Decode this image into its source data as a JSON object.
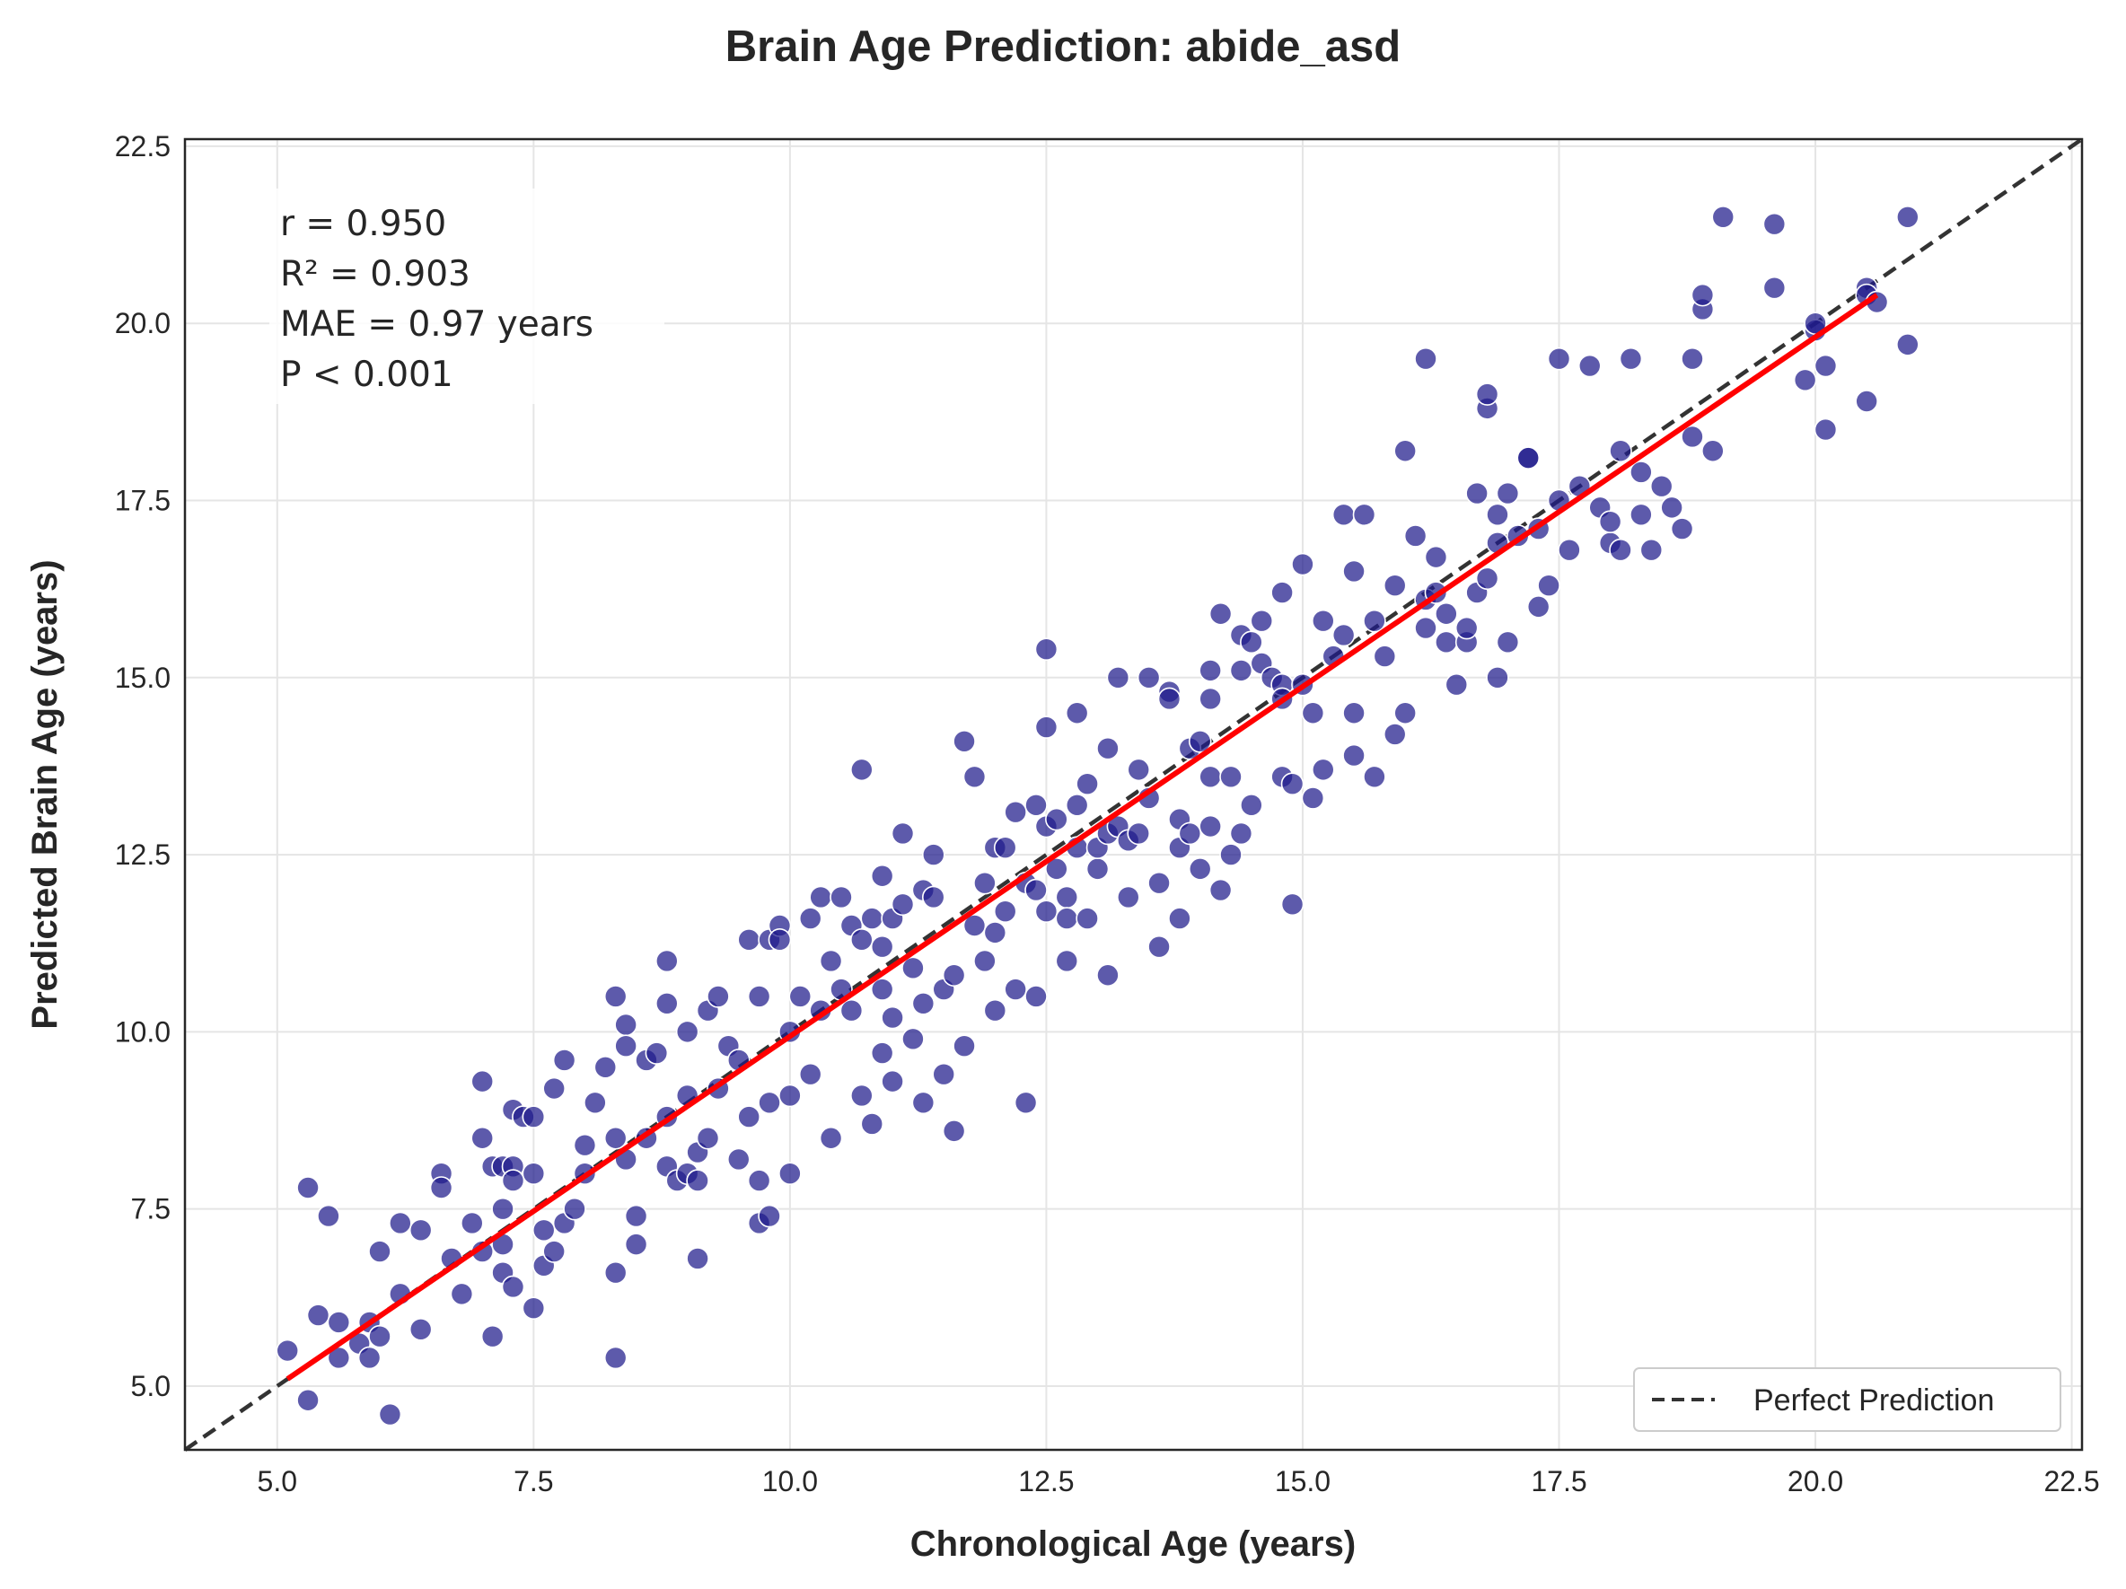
{
  "chart_data": {
    "type": "scatter",
    "title": "Brain Age Prediction: abide_asd",
    "xlabel": "Chronological Age (years)",
    "ylabel": "Predicted Brain Age (years)",
    "xlim": [
      4.1,
      22.6
    ],
    "ylim": [
      4.1,
      22.6
    ],
    "xticks": [
      "5.0",
      "7.5",
      "10.0",
      "12.5",
      "15.0",
      "17.5",
      "20.0",
      "22.5"
    ],
    "yticks": [
      "5.0",
      "7.5",
      "10.0",
      "12.5",
      "15.0",
      "17.5",
      "20.0",
      "22.5"
    ],
    "grid": true,
    "legend": {
      "position": "bottom-right",
      "entries": [
        "Perfect Prediction"
      ]
    },
    "stats": {
      "r": "r = 0.950",
      "r2": "R² = 0.903",
      "mae": "MAE = 0.97 years",
      "p": "P < 0.001"
    },
    "colors": {
      "points": "#1f1a8a",
      "fit_line": "#ff0000",
      "identity_line": "#333333"
    },
    "identity_line": {
      "name": "Perfect Prediction",
      "x": [
        4.1,
        22.6
      ],
      "y": [
        4.1,
        22.6
      ]
    },
    "fit_line": {
      "x": [
        5.1,
        20.6
      ],
      "y": [
        5.1,
        20.4
      ]
    },
    "points": [
      [
        5.1,
        5.5
      ],
      [
        5.3,
        4.8
      ],
      [
        5.3,
        7.8
      ],
      [
        5.4,
        6.0
      ],
      [
        5.5,
        7.4
      ],
      [
        5.6,
        5.9
      ],
      [
        5.6,
        5.4
      ],
      [
        5.8,
        5.6
      ],
      [
        5.9,
        5.9
      ],
      [
        5.9,
        5.4
      ],
      [
        6.0,
        6.9
      ],
      [
        6.0,
        5.7
      ],
      [
        6.1,
        4.6
      ],
      [
        6.2,
        6.3
      ],
      [
        6.2,
        7.3
      ],
      [
        6.4,
        7.2
      ],
      [
        6.4,
        5.8
      ],
      [
        6.6,
        8.0
      ],
      [
        6.6,
        7.8
      ],
      [
        6.7,
        6.8
      ],
      [
        6.8,
        6.3
      ],
      [
        6.9,
        7.3
      ],
      [
        7.0,
        8.5
      ],
      [
        7.0,
        9.3
      ],
      [
        7.0,
        6.9
      ],
      [
        7.1,
        8.1
      ],
      [
        7.1,
        5.7
      ],
      [
        7.2,
        8.1
      ],
      [
        7.2,
        6.6
      ],
      [
        7.2,
        7.5
      ],
      [
        7.2,
        7.0
      ],
      [
        7.3,
        8.9
      ],
      [
        7.3,
        8.1
      ],
      [
        7.3,
        7.9
      ],
      [
        7.3,
        6.4
      ],
      [
        7.4,
        8.8
      ],
      [
        7.5,
        8.8
      ],
      [
        7.5,
        8.0
      ],
      [
        7.5,
        6.1
      ],
      [
        7.6,
        7.2
      ],
      [
        7.6,
        6.7
      ],
      [
        7.7,
        6.9
      ],
      [
        7.7,
        9.2
      ],
      [
        7.8,
        9.6
      ],
      [
        7.8,
        7.3
      ],
      [
        7.9,
        7.5
      ],
      [
        8.0,
        8.4
      ],
      [
        8.0,
        8.0
      ],
      [
        8.1,
        9.0
      ],
      [
        8.2,
        9.5
      ],
      [
        8.3,
        10.5
      ],
      [
        8.3,
        8.5
      ],
      [
        8.3,
        6.6
      ],
      [
        8.3,
        5.4
      ],
      [
        8.4,
        10.1
      ],
      [
        8.4,
        9.8
      ],
      [
        8.4,
        8.2
      ],
      [
        8.5,
        7.4
      ],
      [
        8.5,
        7.0
      ],
      [
        8.6,
        9.6
      ],
      [
        8.6,
        8.5
      ],
      [
        8.7,
        9.7
      ],
      [
        8.8,
        8.8
      ],
      [
        8.8,
        8.1
      ],
      [
        8.8,
        11.0
      ],
      [
        8.8,
        10.4
      ],
      [
        8.9,
        7.9
      ],
      [
        9.0,
        9.1
      ],
      [
        9.0,
        10.0
      ],
      [
        9.0,
        8.0
      ],
      [
        9.1,
        8.3
      ],
      [
        9.1,
        7.9
      ],
      [
        9.1,
        6.8
      ],
      [
        9.2,
        10.3
      ],
      [
        9.2,
        8.5
      ],
      [
        9.3,
        9.2
      ],
      [
        9.3,
        10.5
      ],
      [
        9.4,
        9.8
      ],
      [
        9.5,
        9.6
      ],
      [
        9.5,
        8.2
      ],
      [
        9.6,
        11.3
      ],
      [
        9.6,
        8.8
      ],
      [
        9.7,
        10.5
      ],
      [
        9.7,
        7.9
      ],
      [
        9.7,
        7.3
      ],
      [
        9.8,
        11.3
      ],
      [
        9.8,
        9.0
      ],
      [
        9.8,
        7.4
      ],
      [
        9.9,
        11.5
      ],
      [
        9.9,
        11.3
      ],
      [
        10.0,
        10.0
      ],
      [
        10.0,
        9.1
      ],
      [
        10.0,
        8.0
      ],
      [
        10.1,
        10.5
      ],
      [
        10.2,
        9.4
      ],
      [
        10.2,
        11.6
      ],
      [
        10.3,
        11.9
      ],
      [
        10.3,
        10.3
      ],
      [
        10.4,
        11.0
      ],
      [
        10.4,
        8.5
      ],
      [
        10.5,
        11.9
      ],
      [
        10.5,
        10.6
      ],
      [
        10.6,
        11.5
      ],
      [
        10.6,
        10.3
      ],
      [
        10.7,
        13.7
      ],
      [
        10.7,
        11.3
      ],
      [
        10.7,
        9.1
      ],
      [
        10.8,
        11.6
      ],
      [
        10.8,
        8.7
      ],
      [
        10.9,
        12.2
      ],
      [
        10.9,
        11.2
      ],
      [
        10.9,
        10.6
      ],
      [
        10.9,
        9.7
      ],
      [
        11.0,
        11.6
      ],
      [
        11.0,
        10.2
      ],
      [
        11.0,
        9.3
      ],
      [
        11.1,
        11.8
      ],
      [
        11.1,
        12.8
      ],
      [
        11.2,
        10.9
      ],
      [
        11.2,
        9.9
      ],
      [
        11.3,
        12.0
      ],
      [
        11.3,
        10.4
      ],
      [
        11.3,
        9.0
      ],
      [
        11.4,
        12.5
      ],
      [
        11.4,
        11.9
      ],
      [
        11.5,
        10.6
      ],
      [
        11.5,
        9.4
      ],
      [
        11.6,
        10.8
      ],
      [
        11.6,
        8.6
      ],
      [
        11.7,
        14.1
      ],
      [
        11.7,
        9.8
      ],
      [
        11.8,
        13.6
      ],
      [
        11.8,
        11.5
      ],
      [
        11.9,
        11.0
      ],
      [
        11.9,
        12.1
      ],
      [
        12.0,
        12.6
      ],
      [
        12.0,
        11.4
      ],
      [
        12.0,
        10.3
      ],
      [
        12.1,
        12.6
      ],
      [
        12.1,
        11.7
      ],
      [
        12.2,
        13.1
      ],
      [
        12.2,
        10.6
      ],
      [
        12.3,
        12.1
      ],
      [
        12.3,
        9.0
      ],
      [
        12.4,
        13.2
      ],
      [
        12.4,
        12.0
      ],
      [
        12.4,
        10.5
      ],
      [
        12.5,
        15.4
      ],
      [
        12.5,
        14.3
      ],
      [
        12.5,
        12.9
      ],
      [
        12.5,
        11.7
      ],
      [
        12.6,
        13.0
      ],
      [
        12.6,
        12.3
      ],
      [
        12.7,
        11.9
      ],
      [
        12.7,
        11.6
      ],
      [
        12.7,
        11.0
      ],
      [
        12.8,
        14.5
      ],
      [
        12.8,
        13.2
      ],
      [
        12.8,
        12.6
      ],
      [
        12.9,
        13.5
      ],
      [
        12.9,
        11.6
      ],
      [
        13.0,
        12.3
      ],
      [
        13.0,
        12.6
      ],
      [
        13.1,
        14.0
      ],
      [
        13.1,
        12.8
      ],
      [
        13.1,
        10.8
      ],
      [
        13.2,
        15.0
      ],
      [
        13.2,
        12.9
      ],
      [
        13.3,
        12.7
      ],
      [
        13.3,
        11.9
      ],
      [
        13.4,
        13.7
      ],
      [
        13.4,
        12.8
      ],
      [
        13.5,
        13.3
      ],
      [
        13.5,
        15.0
      ],
      [
        13.6,
        11.2
      ],
      [
        13.6,
        12.1
      ],
      [
        13.7,
        14.8
      ],
      [
        13.7,
        14.7
      ],
      [
        13.8,
        12.6
      ],
      [
        13.8,
        11.6
      ],
      [
        13.8,
        13.0
      ],
      [
        13.9,
        12.8
      ],
      [
        13.9,
        14.0
      ],
      [
        14.0,
        14.1
      ],
      [
        14.0,
        12.3
      ],
      [
        14.1,
        13.6
      ],
      [
        14.1,
        15.1
      ],
      [
        14.1,
        12.9
      ],
      [
        14.1,
        14.7
      ],
      [
        14.2,
        15.9
      ],
      [
        14.2,
        12.0
      ],
      [
        14.3,
        12.5
      ],
      [
        14.3,
        13.6
      ],
      [
        14.4,
        15.6
      ],
      [
        14.4,
        15.1
      ],
      [
        14.4,
        12.8
      ],
      [
        14.5,
        15.5
      ],
      [
        14.5,
        13.2
      ],
      [
        14.6,
        15.8
      ],
      [
        14.6,
        15.2
      ],
      [
        14.7,
        15.0
      ],
      [
        14.8,
        16.2
      ],
      [
        14.8,
        14.9
      ],
      [
        14.8,
        14.7
      ],
      [
        14.8,
        13.6
      ],
      [
        14.9,
        11.8
      ],
      [
        14.9,
        13.5
      ],
      [
        15.0,
        16.6
      ],
      [
        15.0,
        14.9
      ],
      [
        15.1,
        14.5
      ],
      [
        15.1,
        13.3
      ],
      [
        15.2,
        15.8
      ],
      [
        15.2,
        13.7
      ],
      [
        15.3,
        15.3
      ],
      [
        15.4,
        17.3
      ],
      [
        15.4,
        15.6
      ],
      [
        15.5,
        16.5
      ],
      [
        15.5,
        14.5
      ],
      [
        15.5,
        13.9
      ],
      [
        15.6,
        17.3
      ],
      [
        15.7,
        15.8
      ],
      [
        15.7,
        13.6
      ],
      [
        15.8,
        15.3
      ],
      [
        15.9,
        16.3
      ],
      [
        15.9,
        14.2
      ],
      [
        16.0,
        18.2
      ],
      [
        16.0,
        14.5
      ],
      [
        16.1,
        17.0
      ],
      [
        16.2,
        19.5
      ],
      [
        16.2,
        16.1
      ],
      [
        16.2,
        15.7
      ],
      [
        16.3,
        16.7
      ],
      [
        16.3,
        16.2
      ],
      [
        16.4,
        15.9
      ],
      [
        16.4,
        15.5
      ],
      [
        16.5,
        14.9
      ],
      [
        16.6,
        15.5
      ],
      [
        16.6,
        15.7
      ],
      [
        16.7,
        17.6
      ],
      [
        16.7,
        16.2
      ],
      [
        16.8,
        18.8
      ],
      [
        16.8,
        19.0
      ],
      [
        16.8,
        16.4
      ],
      [
        16.9,
        17.3
      ],
      [
        16.9,
        16.9
      ],
      [
        16.9,
        15.0
      ],
      [
        17.0,
        17.6
      ],
      [
        17.0,
        15.5
      ],
      [
        17.1,
        17.0
      ],
      [
        17.2,
        18.1
      ],
      [
        17.2,
        18.1
      ],
      [
        17.3,
        17.1
      ],
      [
        17.3,
        16.0
      ],
      [
        17.4,
        16.3
      ],
      [
        17.5,
        17.5
      ],
      [
        17.5,
        19.5
      ],
      [
        17.6,
        16.8
      ],
      [
        17.7,
        17.7
      ],
      [
        17.8,
        19.4
      ],
      [
        17.9,
        17.4
      ],
      [
        18.0,
        16.9
      ],
      [
        18.0,
        17.2
      ],
      [
        18.1,
        18.2
      ],
      [
        18.1,
        16.8
      ],
      [
        18.2,
        19.5
      ],
      [
        18.3,
        17.3
      ],
      [
        18.3,
        17.9
      ],
      [
        18.4,
        16.8
      ],
      [
        18.5,
        17.7
      ],
      [
        18.6,
        17.4
      ],
      [
        18.7,
        17.1
      ],
      [
        18.8,
        18.4
      ],
      [
        18.8,
        19.5
      ],
      [
        18.9,
        20.2
      ],
      [
        18.9,
        20.4
      ],
      [
        19.0,
        18.2
      ],
      [
        19.1,
        21.5
      ],
      [
        19.6,
        21.4
      ],
      [
        19.6,
        20.5
      ],
      [
        19.9,
        19.2
      ],
      [
        20.0,
        19.9
      ],
      [
        20.0,
        20.0
      ],
      [
        20.1,
        18.5
      ],
      [
        20.1,
        19.4
      ],
      [
        20.5,
        18.9
      ],
      [
        20.5,
        20.5
      ],
      [
        20.5,
        20.4
      ],
      [
        20.6,
        20.3
      ],
      [
        20.9,
        21.5
      ],
      [
        20.9,
        19.7
      ]
    ]
  }
}
